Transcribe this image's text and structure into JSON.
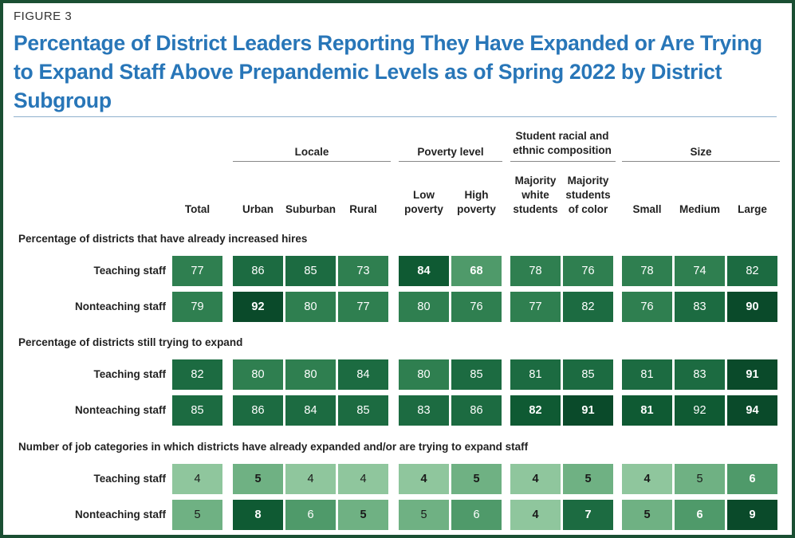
{
  "figure_label": "FIGURE 3",
  "title": "Percentage of District Leaders Reporting They Have Expanded or Are Trying to Expand Staff Above Prepandemic Levels as of Spring 2022 by District Subgroup",
  "group_headers": [
    {
      "key": "locale",
      "label": "Locale"
    },
    {
      "key": "poverty",
      "label": "Poverty level"
    },
    {
      "key": "race",
      "label": "Student racial and ethnic composition"
    },
    {
      "key": "size",
      "label": "Size"
    }
  ],
  "columns": [
    {
      "key": "total",
      "label": "Total"
    },
    {
      "key": "urban",
      "label": "Urban"
    },
    {
      "key": "suburban",
      "label": "Suburban"
    },
    {
      "key": "rural",
      "label": "Rural"
    },
    {
      "key": "low_poverty",
      "label": "Low poverty"
    },
    {
      "key": "high_poverty",
      "label": "High poverty"
    },
    {
      "key": "majority_white",
      "label": "Majority white students"
    },
    {
      "key": "majority_color",
      "label": "Majority students of color"
    },
    {
      "key": "small",
      "label": "Small"
    },
    {
      "key": "medium",
      "label": "Medium"
    },
    {
      "key": "large",
      "label": "Large"
    }
  ],
  "colors": {
    "title": "#2876b8",
    "frame": "#1a4f33",
    "shade_levels": [
      "#8fc69d",
      "#6fb183",
      "#4f9a6a",
      "#2f7f50",
      "#1c6b41",
      "#0f5a33",
      "#0a4a2a"
    ]
  },
  "chart_data": {
    "type": "table",
    "sections": [
      {
        "title": "Percentage of districts that have already increased hires",
        "rows": [
          {
            "label": "Teaching staff",
            "values": [
              77,
              86,
              85,
              73,
              84,
              68,
              78,
              76,
              78,
              74,
              82
            ],
            "bold": [
              false,
              false,
              false,
              false,
              true,
              true,
              false,
              false,
              false,
              false,
              false
            ],
            "shade": [
              3,
              4,
              4,
              3,
              5,
              2,
              3,
              3,
              3,
              3,
              4
            ]
          },
          {
            "label": "Nonteaching staff",
            "values": [
              79,
              92,
              80,
              77,
              80,
              76,
              77,
              82,
              76,
              83,
              90
            ],
            "bold": [
              false,
              true,
              false,
              false,
              false,
              false,
              false,
              false,
              false,
              false,
              true
            ],
            "shade": [
              3,
              6,
              3,
              3,
              3,
              3,
              3,
              4,
              3,
              4,
              6
            ]
          }
        ]
      },
      {
        "title": "Percentage of districts still trying to expand",
        "rows": [
          {
            "label": "Teaching staff",
            "values": [
              82,
              80,
              80,
              84,
              80,
              85,
              81,
              85,
              81,
              83,
              91
            ],
            "bold": [
              false,
              false,
              false,
              false,
              false,
              false,
              false,
              false,
              false,
              false,
              true
            ],
            "shade": [
              4,
              3,
              3,
              4,
              3,
              4,
              4,
              4,
              4,
              4,
              6
            ]
          },
          {
            "label": "Nonteaching staff",
            "values": [
              85,
              86,
              84,
              85,
              83,
              86,
              82,
              91,
              81,
              92,
              94
            ],
            "bold": [
              false,
              false,
              false,
              false,
              false,
              false,
              true,
              true,
              true,
              false,
              true
            ],
            "shade": [
              4,
              4,
              4,
              4,
              4,
              4,
              5,
              6,
              5,
              5,
              6
            ]
          }
        ]
      },
      {
        "title": "Number of job categories in which districts have already expanded and/or are trying to expand staff",
        "rows": [
          {
            "label": "Teaching staff",
            "values": [
              4,
              5,
              4,
              4,
              4,
              5,
              4,
              5,
              4,
              5,
              6
            ],
            "bold": [
              false,
              true,
              false,
              false,
              true,
              true,
              true,
              true,
              true,
              false,
              true
            ],
            "shade": [
              0,
              1,
              0,
              0,
              0,
              1,
              0,
              1,
              0,
              1,
              2
            ]
          },
          {
            "label": "Nonteaching staff",
            "values": [
              5,
              8,
              6,
              5,
              5,
              6,
              4,
              7,
              5,
              6,
              9
            ],
            "bold": [
              false,
              true,
              false,
              true,
              false,
              false,
              true,
              true,
              true,
              true,
              true
            ],
            "shade": [
              1,
              5,
              2,
              1,
              1,
              2,
              0,
              4,
              1,
              2,
              6
            ]
          }
        ]
      }
    ]
  }
}
